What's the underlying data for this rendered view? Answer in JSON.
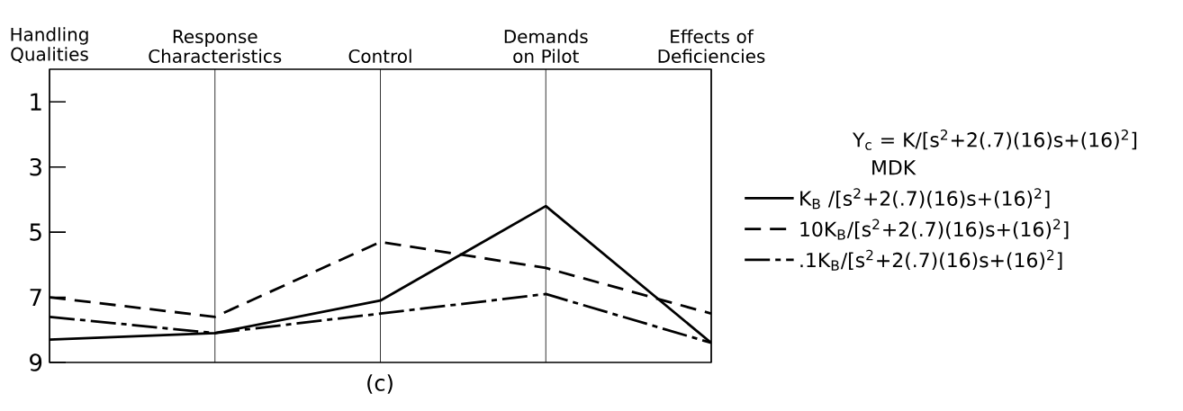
{
  "chart_data": {
    "type": "line",
    "categories": [
      "Handling Qualities",
      "Response Characteristics",
      "Control",
      "Demands on Pilot",
      "Effects of Deficiencies"
    ],
    "ylim": [
      9,
      0
    ],
    "yticks": [
      1,
      3,
      5,
      7,
      9
    ],
    "grid": "x",
    "legend": "right",
    "legend_title": "Y$_{c}$ = K/[s$^{2}$+2(.7)(16)s+(16)$^{2}$]",
    "annotations": [
      "(c)",
      "MDK"
    ],
    "series": [
      {
        "name": "K$_{B}$ /[s$^{2}$+2(.7)(16)s+(16)$^{2}$]",
        "color": "#000000",
        "line_style": "solid",
        "values": [
          8.3,
          8.1,
          7.1,
          4.2,
          8.4
        ]
      },
      {
        "name": "10K$_{B}$/[s$^{2}$+2(.7)(16)s+(16)$^{2}$]",
        "color": "#000000",
        "line_style": "dashed",
        "values": [
          7.0,
          7.6,
          5.3,
          6.1,
          7.5
        ]
      },
      {
        "name": ".1K$_{B}$/[s$^{2}$+2(.7)(16)s+(16)$^{2}$]",
        "color": "#000000",
        "line_style": "dashdot",
        "values": [
          7.6,
          8.1,
          7.5,
          6.9,
          8.4
        ]
      }
    ]
  }
}
